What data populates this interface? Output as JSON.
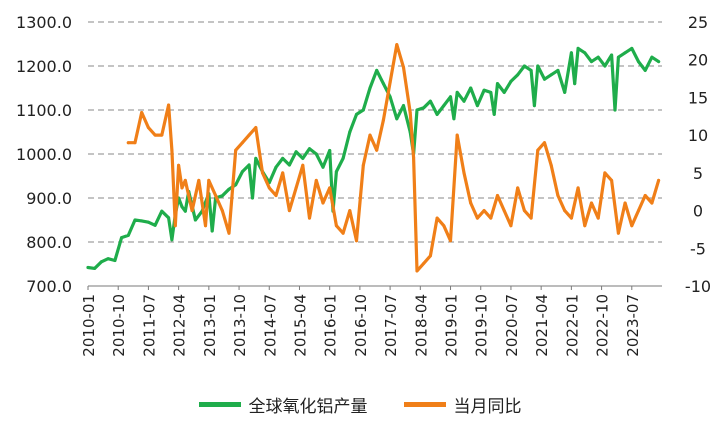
{
  "chart_data": {
    "type": "line",
    "title": "",
    "left_axis": {
      "min": 700,
      "max": 1300,
      "ticks": [
        "700.0",
        "800.0",
        "900.0",
        "1000.0",
        "1100.0",
        "1200.0",
        "1300.0"
      ]
    },
    "right_axis": {
      "min": -10,
      "max": 25,
      "ticks": [
        "-10",
        "-5",
        "0",
        "5",
        "10",
        "15",
        "20",
        "25"
      ]
    },
    "x_range": [
      "2010-01",
      "2024-04"
    ],
    "x_tick_labels": [
      "2010-01",
      "2010-10",
      "2011-07",
      "2012-04",
      "2013-01",
      "2013-10",
      "2014-07",
      "2015-04",
      "2016-01",
      "2016-10",
      "2017-07",
      "2018-04",
      "2019-01",
      "2019-10",
      "2020-07",
      "2021-04",
      "2022-01",
      "2022-10",
      "2023-07"
    ],
    "grid": "horizontal dashed",
    "legend_position": "bottom",
    "series": [
      {
        "name": "全球氧化铝产量",
        "axis": "left",
        "color": "#1fad4b",
        "x": [
          "2010-01",
          "2010-03",
          "2010-05",
          "2010-07",
          "2010-09",
          "2010-11",
          "2011-01",
          "2011-03",
          "2011-05",
          "2011-07",
          "2011-09",
          "2011-11",
          "2012-01",
          "2012-02",
          "2012-03",
          "2012-04",
          "2012-05",
          "2012-06",
          "2012-07",
          "2012-09",
          "2012-11",
          "2013-01",
          "2013-02",
          "2013-03",
          "2013-05",
          "2013-07",
          "2013-09",
          "2013-11",
          "2014-01",
          "2014-02",
          "2014-03",
          "2014-05",
          "2014-07",
          "2014-09",
          "2014-11",
          "2015-01",
          "2015-03",
          "2015-05",
          "2015-07",
          "2015-09",
          "2015-11",
          "2016-01",
          "2016-02",
          "2016-03",
          "2016-05",
          "2016-07",
          "2016-09",
          "2016-11",
          "2017-01",
          "2017-03",
          "2017-05",
          "2017-07",
          "2017-09",
          "2017-11",
          "2018-01",
          "2018-02",
          "2018-03",
          "2018-05",
          "2018-07",
          "2018-09",
          "2018-11",
          "2019-01",
          "2019-02",
          "2019-03",
          "2019-05",
          "2019-07",
          "2019-09",
          "2019-11",
          "2020-01",
          "2020-02",
          "2020-03",
          "2020-05",
          "2020-07",
          "2020-09",
          "2020-11",
          "2021-01",
          "2021-02",
          "2021-03",
          "2021-05",
          "2021-07",
          "2021-09",
          "2021-11",
          "2022-01",
          "2022-02",
          "2022-03",
          "2022-05",
          "2022-07",
          "2022-09",
          "2022-11",
          "2023-01",
          "2023-02",
          "2023-03",
          "2023-05",
          "2023-07",
          "2023-09",
          "2023-11",
          "2024-01",
          "2024-03"
        ],
        "values": [
          742,
          740,
          755,
          762,
          758,
          810,
          815,
          850,
          848,
          845,
          838,
          870,
          855,
          805,
          862,
          900,
          880,
          870,
          915,
          850,
          870,
          910,
          825,
          900,
          905,
          920,
          930,
          960,
          975,
          900,
          990,
          960,
          935,
          970,
          990,
          975,
          1005,
          990,
          1012,
          1000,
          970,
          1008,
          870,
          960,
          990,
          1050,
          1090,
          1100,
          1150,
          1190,
          1160,
          1130,
          1080,
          1110,
          1050,
          1000,
          1100,
          1105,
          1120,
          1090,
          1110,
          1130,
          1080,
          1140,
          1120,
          1150,
          1110,
          1145,
          1140,
          1090,
          1160,
          1140,
          1165,
          1180,
          1200,
          1190,
          1110,
          1200,
          1170,
          1180,
          1190,
          1140,
          1230,
          1160,
          1240,
          1230,
          1210,
          1220,
          1200,
          1225,
          1100,
          1220,
          1230,
          1240,
          1210,
          1190,
          1220,
          1210
        ]
      },
      {
        "name": "当月同比",
        "axis": "right",
        "color": "#f07f18",
        "x": [
          "2011-01",
          "2011-03",
          "2011-05",
          "2011-07",
          "2011-09",
          "2011-11",
          "2012-01",
          "2012-02",
          "2012-03",
          "2012-04",
          "2012-05",
          "2012-06",
          "2012-08",
          "2012-10",
          "2012-12",
          "2013-01",
          "2013-03",
          "2013-05",
          "2013-07",
          "2013-09",
          "2013-11",
          "2014-01",
          "2014-03",
          "2014-05",
          "2014-07",
          "2014-09",
          "2014-11",
          "2015-01",
          "2015-03",
          "2015-05",
          "2015-07",
          "2015-09",
          "2015-11",
          "2016-01",
          "2016-03",
          "2016-05",
          "2016-07",
          "2016-09",
          "2016-11",
          "2017-01",
          "2017-03",
          "2017-05",
          "2017-07",
          "2017-09",
          "2017-11",
          "2018-01",
          "2018-02",
          "2018-03",
          "2018-05",
          "2018-07",
          "2018-09",
          "2018-11",
          "2019-01",
          "2019-03",
          "2019-05",
          "2019-07",
          "2019-09",
          "2019-11",
          "2020-01",
          "2020-03",
          "2020-05",
          "2020-07",
          "2020-09",
          "2020-11",
          "2021-01",
          "2021-03",
          "2021-05",
          "2021-07",
          "2021-09",
          "2021-11",
          "2022-01",
          "2022-03",
          "2022-05",
          "2022-07",
          "2022-09",
          "2022-11",
          "2023-01",
          "2023-03",
          "2023-05",
          "2023-07",
          "2023-09",
          "2023-11",
          "2024-01",
          "2024-03"
        ],
        "values": [
          9,
          9,
          13,
          11,
          10,
          10,
          14,
          8,
          -2,
          6,
          3,
          4,
          0,
          4,
          -2,
          4,
          2,
          0,
          -3,
          8,
          9,
          10,
          11,
          5,
          3,
          2,
          5,
          0,
          3,
          6,
          -1,
          4,
          1,
          3,
          -2,
          -3,
          0,
          -4,
          6,
          10,
          8,
          12,
          17,
          22,
          19,
          13,
          7,
          -8,
          -7,
          -6,
          -1,
          -2,
          -4,
          10,
          5,
          1,
          -1,
          0,
          -1,
          2,
          0,
          -2,
          3,
          0,
          -1,
          8,
          9,
          6,
          2,
          0,
          -1,
          3,
          -2,
          1,
          -1,
          5,
          4,
          -3,
          1,
          -2,
          0,
          2,
          1,
          4
        ]
      }
    ]
  }
}
